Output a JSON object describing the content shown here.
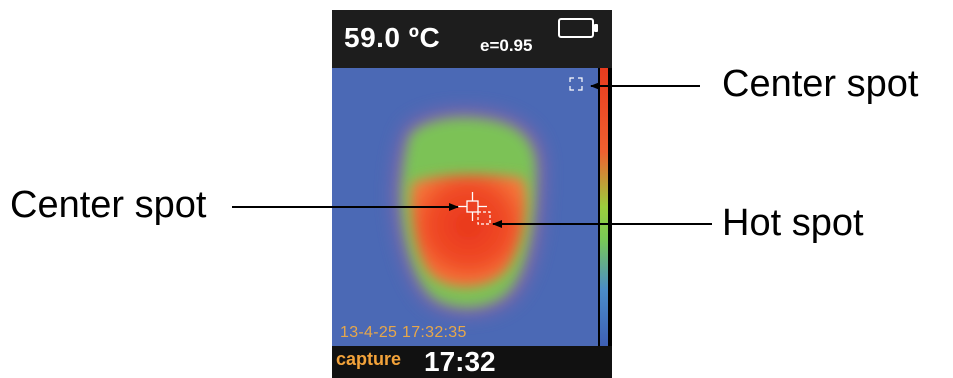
{
  "display": {
    "temperature": "59.0 ºC",
    "emissivity": "e=0.95",
    "datetime": "13-4-25 17:32:35",
    "capture_label": "capture",
    "clock": "17:32"
  },
  "callouts": {
    "center_spot_right": "Center spot",
    "center_spot_left": "Center spot",
    "hot_spot": "Hot spot"
  },
  "icons": [
    "battery-icon",
    "crosshair-icon",
    "hotspot-marker-icon",
    "corner-marker-icon"
  ],
  "colors": {
    "background_cold": "#4b69b5",
    "hot": "#e83b1e",
    "warm": "#8cc84a",
    "text_orange": "#f2a23a"
  }
}
